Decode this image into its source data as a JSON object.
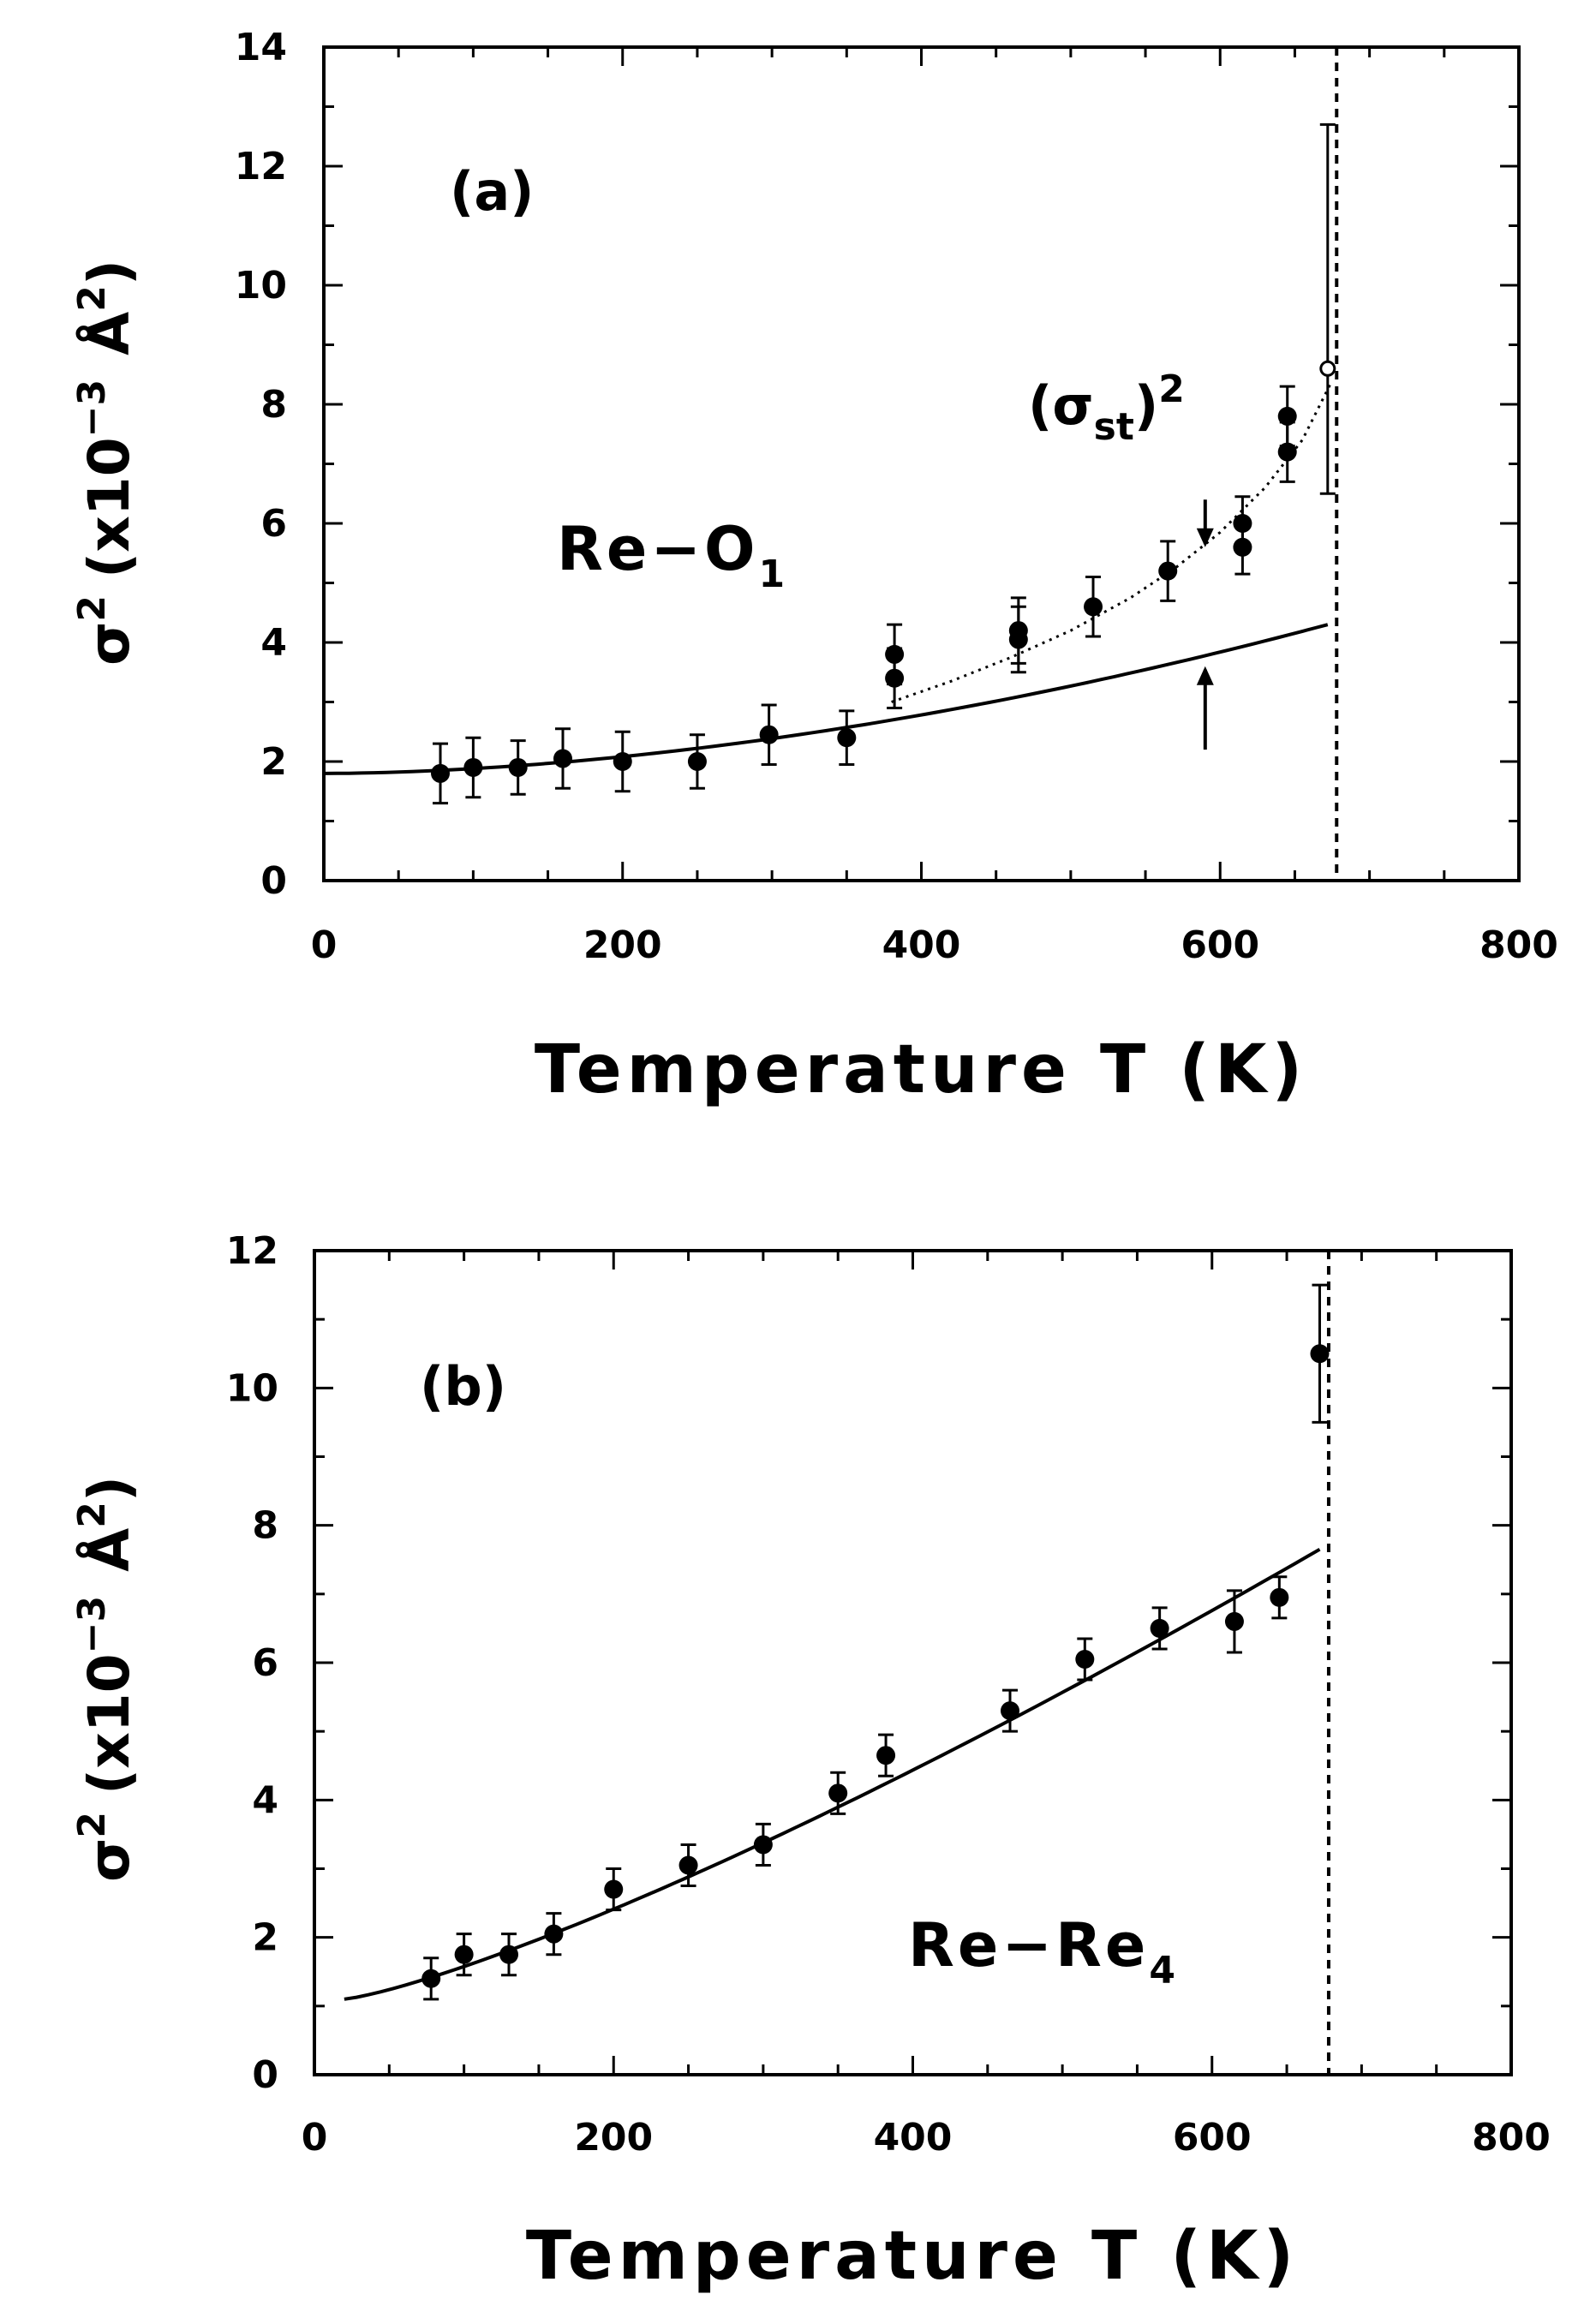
{
  "chart_data": [
    {
      "panel": "(a)",
      "type": "scatter",
      "series_label_main": "Re−O",
      "series_label_sub": "1",
      "annotation_main": "(σ",
      "annotation_sub": "st",
      "annotation_tail": ")",
      "annotation_sup": "2",
      "xlabel": "Temperature  T  (K)",
      "ylabel_main": "σ",
      "ylabel_sup": "2",
      "ylabel_mid": "(x10",
      "ylabel_sup2": "−3",
      "ylabel_tail": "Å",
      "ylabel_sup3": "2",
      "ylabel_close": ")",
      "xlim": [
        0,
        800
      ],
      "ylim": [
        0,
        14
      ],
      "xticks": [
        "0",
        "200",
        "400",
        "600",
        "800"
      ],
      "yticks": [
        "0",
        "2",
        "4",
        "6",
        "8",
        "10",
        "12",
        "14"
      ],
      "vline_x": 678,
      "points": [
        {
          "x": 78,
          "y": 1.8,
          "err": 0.5
        },
        {
          "x": 100,
          "y": 1.9,
          "err": 0.5
        },
        {
          "x": 130,
          "y": 1.9,
          "err": 0.45
        },
        {
          "x": 160,
          "y": 2.05,
          "err": 0.5
        },
        {
          "x": 200,
          "y": 2.0,
          "err": 0.5
        },
        {
          "x": 250,
          "y": 2.0,
          "err": 0.45
        },
        {
          "x": 298,
          "y": 2.45,
          "err": 0.5
        },
        {
          "x": 350,
          "y": 2.4,
          "err": 0.45
        },
        {
          "x": 382,
          "y": 3.8,
          "err": 0.5
        },
        {
          "x": 382,
          "y": 3.4,
          "err": 0.5
        },
        {
          "x": 465,
          "y": 4.2,
          "err": 0.55
        },
        {
          "x": 465,
          "y": 4.05,
          "err": 0.55
        },
        {
          "x": 515,
          "y": 4.6,
          "err": 0.5
        },
        {
          "x": 565,
          "y": 5.2,
          "err": 0.5
        },
        {
          "x": 615,
          "y": 6.0,
          "err": 0.45
        },
        {
          "x": 615,
          "y": 5.6,
          "err": 0.45
        },
        {
          "x": 645,
          "y": 7.8,
          "err": 0.5
        },
        {
          "x": 645,
          "y": 7.2,
          "err": 0.5
        },
        {
          "x": 672,
          "y": 8.6,
          "err_hi": 4.1,
          "err_lo": 2.1,
          "open": true
        }
      ],
      "solid_curve": {
        "x0": 0,
        "y0": 1.8,
        "x1": 672,
        "y1": 4.3,
        "p": 1.8
      },
      "dotted_curve": {
        "x": [
          380,
          420,
          460,
          500,
          540,
          570,
          600,
          630,
          655,
          675
        ],
        "y": [
          3.0,
          3.35,
          3.75,
          4.2,
          4.75,
          5.25,
          5.85,
          6.6,
          7.4,
          8.4
        ]
      },
      "arrow_down": {
        "x": 590,
        "y_from": 6.4,
        "y_to": 5.6
      },
      "arrow_up": {
        "x": 590,
        "y_from": 2.2,
        "y_to": 3.6
      }
    },
    {
      "panel": "(b)",
      "type": "scatter",
      "series_label_main": "Re−Re",
      "series_label_sub": "4",
      "xlabel": "Temperature  T  (K)",
      "ylabel_main": "σ",
      "ylabel_sup": "2",
      "ylabel_mid": "(x10",
      "ylabel_sup2": "−3",
      "ylabel_tail": "Å",
      "ylabel_sup3": "2",
      "ylabel_close": ")",
      "xlim": [
        0,
        800
      ],
      "ylim": [
        0,
        12
      ],
      "xticks": [
        "0",
        "200",
        "400",
        "600",
        "800"
      ],
      "yticks": [
        "0",
        "2",
        "4",
        "6",
        "8",
        "10",
        "12"
      ],
      "vline_x": 678,
      "points": [
        {
          "x": 78,
          "y": 1.4,
          "err": 0.3
        },
        {
          "x": 100,
          "y": 1.75,
          "err": 0.3
        },
        {
          "x": 130,
          "y": 1.75,
          "err": 0.3
        },
        {
          "x": 160,
          "y": 2.05,
          "err": 0.3
        },
        {
          "x": 200,
          "y": 2.7,
          "err": 0.3
        },
        {
          "x": 250,
          "y": 3.05,
          "err": 0.3
        },
        {
          "x": 300,
          "y": 3.35,
          "err": 0.3
        },
        {
          "x": 350,
          "y": 4.1,
          "err": 0.3
        },
        {
          "x": 382,
          "y": 4.65,
          "err": 0.3
        },
        {
          "x": 465,
          "y": 5.3,
          "err": 0.3
        },
        {
          "x": 515,
          "y": 6.05,
          "err": 0.3
        },
        {
          "x": 565,
          "y": 6.5,
          "err": 0.3
        },
        {
          "x": 615,
          "y": 6.6,
          "err": 0.45
        },
        {
          "x": 645,
          "y": 6.95,
          "err": 0.3
        },
        {
          "x": 672,
          "y": 10.5,
          "err": 1.0
        }
      ],
      "solid_curve": {
        "x0": 20,
        "y0": 1.1,
        "x1": 672,
        "y1": 7.65,
        "p": 1.25
      }
    }
  ]
}
